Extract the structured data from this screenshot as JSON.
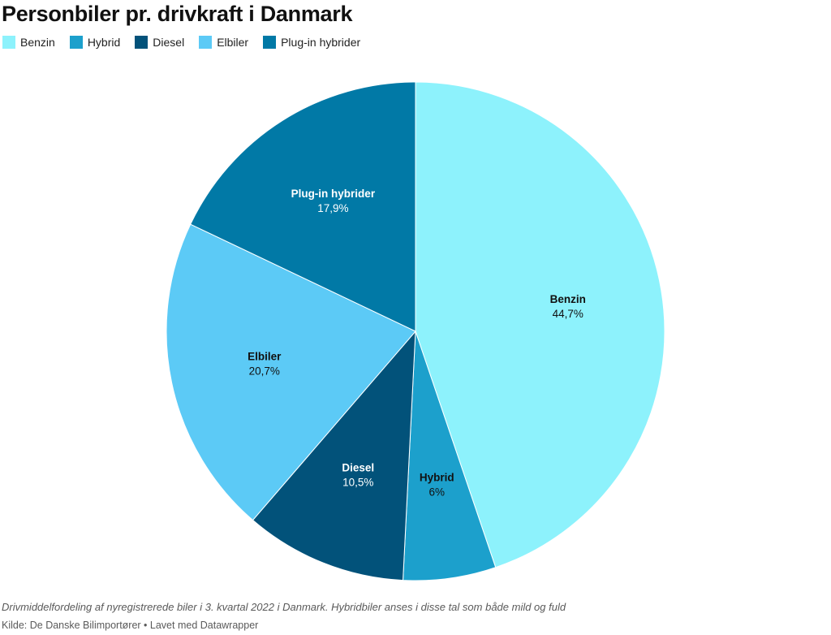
{
  "chart_data": {
    "type": "pie",
    "title": "Personbiler pr. drivkraft i Danmark",
    "legend_placement": "top-left",
    "slices": [
      {
        "name": "Benzin",
        "value": 44.7,
        "label": "44,7%",
        "color": "#8df2fc",
        "text_color": "#111111"
      },
      {
        "name": "Hybrid",
        "value": 6,
        "label": "6%",
        "color": "#1ca0cc",
        "text_color": "#111111"
      },
      {
        "name": "Diesel",
        "value": 10.5,
        "label": "10,5%",
        "color": "#02527a",
        "text_color": "#ffffff"
      },
      {
        "name": "Elbiler",
        "value": 20.7,
        "label": "20,7%",
        "color": "#5ccaf6",
        "text_color": "#111111"
      },
      {
        "name": "Plug-in hybrider",
        "value": 17.9,
        "label": "17,9%",
        "color": "#0179a6",
        "text_color": "#ffffff"
      }
    ],
    "legend": [
      "Benzin",
      "Hybrid",
      "Diesel",
      "Elbiler",
      "Plug-in hybrider"
    ],
    "note": "Drivmiddelfordeling af nyregistrerede biler i 3. kvartal 2022 i Danmark. Hybridbiler anses i disse tal som både mild og fuld",
    "source": "Kilde: De Danske Bilimportører • Lavet med Datawrapper"
  }
}
